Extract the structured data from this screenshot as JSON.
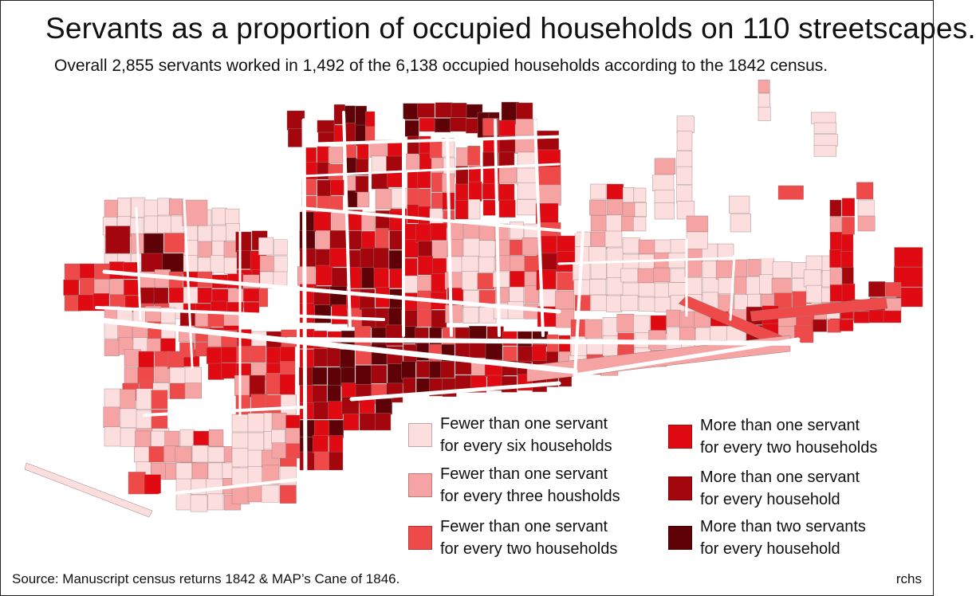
{
  "title": "Servants as a proportion of occupied households on 110 streetscapes.",
  "subtitle": "Overall 2,855 servants worked in 1,492 of the 6,138 occupied households according to the 1842 census.",
  "legend": [
    {
      "line1": "Fewer than one servant",
      "line2": "for every six households",
      "color": "#fcdede"
    },
    {
      "line1": "Fewer than one servant",
      "line2": "for every three housholds",
      "color": "#f5a3a3"
    },
    {
      "line1": "Fewer than one servant",
      "line2": "for every two households",
      "color": "#ee4a4a"
    },
    {
      "line1": "More than one servant",
      "line2": "for every two households",
      "color": "#e00a12"
    },
    {
      "line1": "More than one servant",
      "line2": "for every household",
      "color": "#a3060c"
    },
    {
      "line1": "More than two servants",
      "line2": "for every household",
      "color": "#5e0207"
    }
  ],
  "source": "Source: Manuscript census returns 1842 & MAP’s Cane of 1846.",
  "credit": "rchs",
  "colors": {
    "c1": "#fcdede",
    "c2": "#f5a3a3",
    "c3": "#ee4a4a",
    "c4": "#e00a12",
    "c5": "#a3060c",
    "c6": "#5e0207",
    "street": "#ffffff",
    "outline": "#9a7d7d"
  }
}
